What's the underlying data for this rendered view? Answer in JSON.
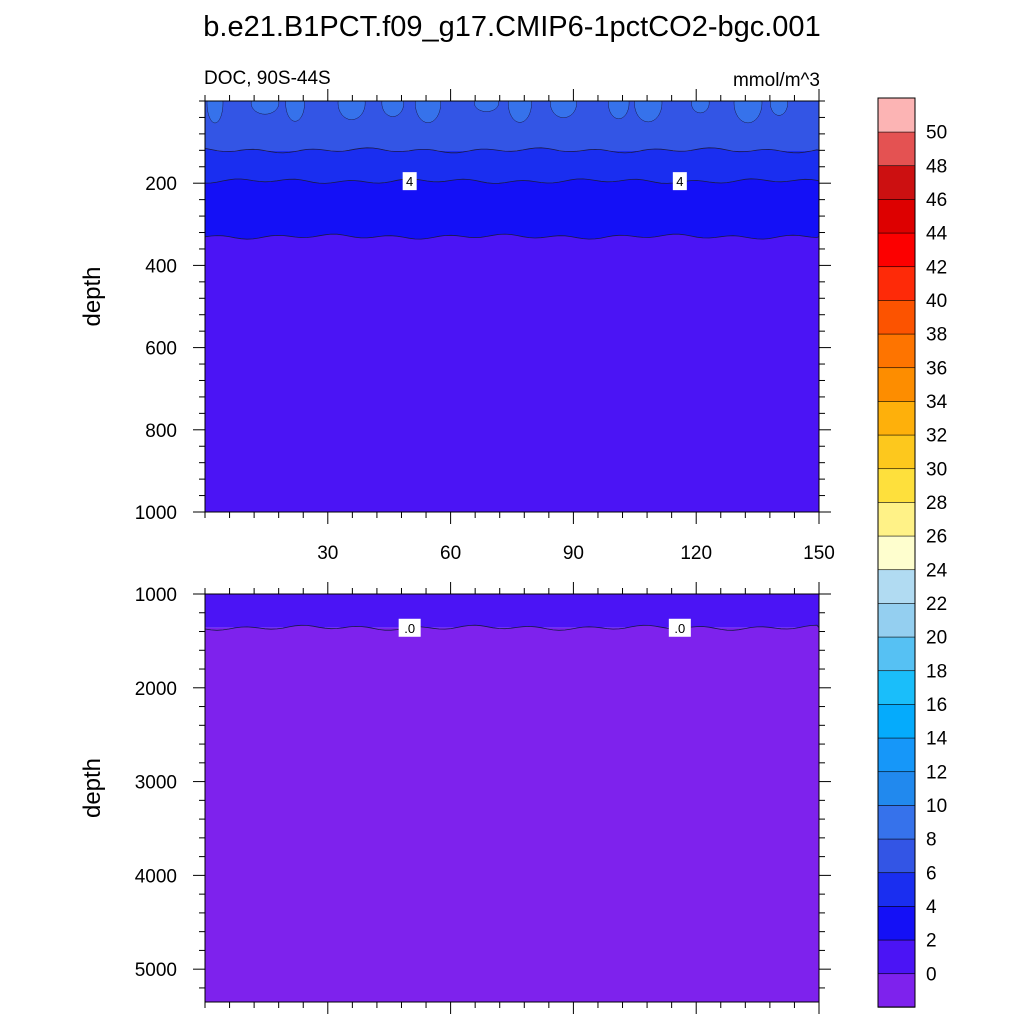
{
  "chart_data": {
    "title": "b.e21.B1PCT.f09_g17.CMIP6-1pctCO2-bgc.001",
    "variable_label": "DOC, 90S-44S",
    "units": "mmol/m^3",
    "type": "heatmap",
    "colorbar": {
      "levels": [
        0,
        2,
        4,
        6,
        8,
        10,
        12,
        14,
        16,
        18,
        20,
        22,
        24,
        26,
        28,
        30,
        32,
        34,
        36,
        38,
        40,
        42,
        44,
        46,
        48,
        50
      ],
      "tick_labels": [
        "0",
        "2",
        "4",
        "6",
        "8",
        "10",
        "12",
        "14",
        "16",
        "18",
        "20",
        "22",
        "24",
        "26",
        "28",
        "30",
        "32",
        "34",
        "36",
        "38",
        "40",
        "42",
        "44",
        "46",
        "48",
        "50"
      ],
      "colors": [
        "#7e22ed",
        "#4b14f5",
        "#1410f6",
        "#1a2ef0",
        "#3355e5",
        "#3672eb",
        "#2189ee",
        "#1697f9",
        "#05abfc",
        "#1abefa",
        "#56c1f3",
        "#94cff0",
        "#b1dbf2",
        "#fefece",
        "#fff287",
        "#fee03c",
        "#fdc81d",
        "#feb00b",
        "#fd8d00",
        "#fe7400",
        "#fc5300",
        "#fe2a08",
        "#fc0000",
        "#dd0000",
        "#cc1011",
        "#e45252",
        "#fcb4b4"
      ]
    },
    "panels": [
      {
        "name": "upper",
        "ylabel": "depth",
        "ylim": [
          0,
          1000
        ],
        "y_inverted": true,
        "yticks": [
          200,
          400,
          600,
          800,
          1000
        ],
        "ytick_labels": [
          "200",
          "400",
          "600",
          "800",
          "1000"
        ],
        "xlim": [
          0,
          150
        ],
        "xticks": [
          30,
          60,
          90,
          120,
          150
        ],
        "xtick_labels": [
          "30",
          "60",
          "90",
          "120",
          "150"
        ],
        "bands": [
          {
            "from_depth": 0,
            "to_depth": 120,
            "level_index": 4
          },
          {
            "from_depth": 120,
            "to_depth": 195,
            "level_index": 3
          },
          {
            "from_depth": 195,
            "to_depth": 330,
            "level_index": 2
          },
          {
            "from_depth": 330,
            "to_depth": 1000,
            "level_index": 1
          }
        ],
        "contour_labels": [
          {
            "text": "4",
            "x": 50,
            "depth": 195
          },
          {
            "text": "4",
            "x": 116,
            "depth": 195
          }
        ]
      },
      {
        "name": "lower",
        "ylabel": "depth",
        "ylim": [
          1000,
          5350
        ],
        "y_inverted": true,
        "yticks": [
          1000,
          2000,
          3000,
          4000,
          5000
        ],
        "ytick_labels": [
          "1000",
          "2000",
          "3000",
          "4000",
          "5000"
        ],
        "xlim": [
          0,
          150
        ],
        "xticks": [
          30,
          60,
          90,
          120,
          150
        ],
        "xtick_labels": [],
        "bands": [
          {
            "from_depth": 1000,
            "to_depth": 1360,
            "level_index": 1
          },
          {
            "from_depth": 1360,
            "to_depth": 5350,
            "level_index": 0
          }
        ],
        "contour_labels": [
          {
            "text": ".0",
            "x": 50,
            "depth": 1360
          },
          {
            "text": ".0",
            "x": 116,
            "depth": 1360
          }
        ]
      }
    ]
  }
}
